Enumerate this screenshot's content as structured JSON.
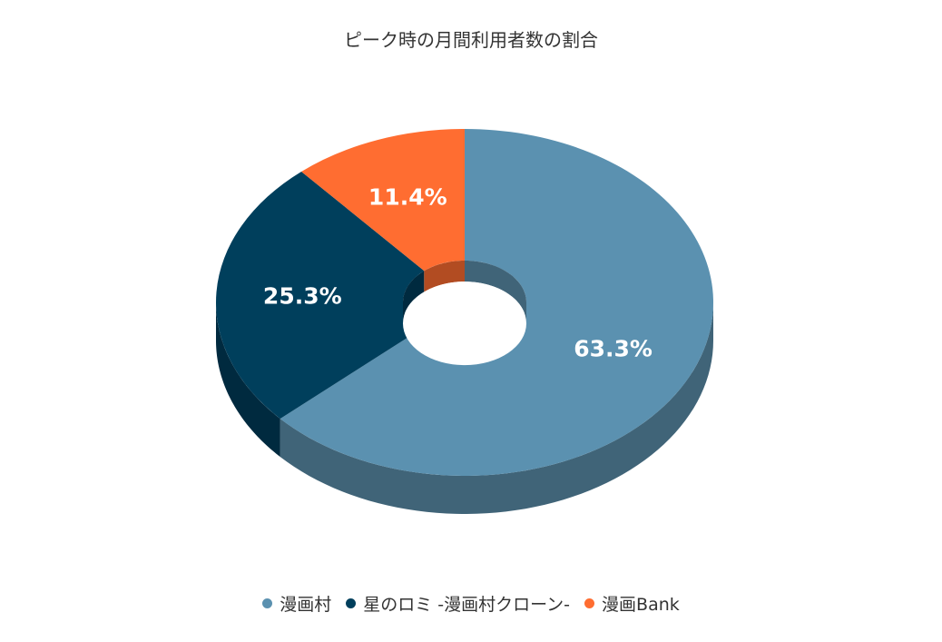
{
  "chart_data": {
    "type": "pie",
    "title": "ピーク時の月間利用者数の割合",
    "series": [
      {
        "name": "漫画村",
        "value": 63.3,
        "label": "63.3%",
        "color": "#5b91b0",
        "side_color": "#406478"
      },
      {
        "name": "星のロミ -漫画村クローン-",
        "value": 25.3,
        "label": "25.3%",
        "color": "#003f5c",
        "side_color": "#002a3f"
      },
      {
        "name": "漫画Bank",
        "value": 11.4,
        "label": "11.4%",
        "color": "#ff6d31",
        "side_color": "#b24c22"
      }
    ],
    "donut": true,
    "three_d": true,
    "legend_position": "bottom"
  }
}
